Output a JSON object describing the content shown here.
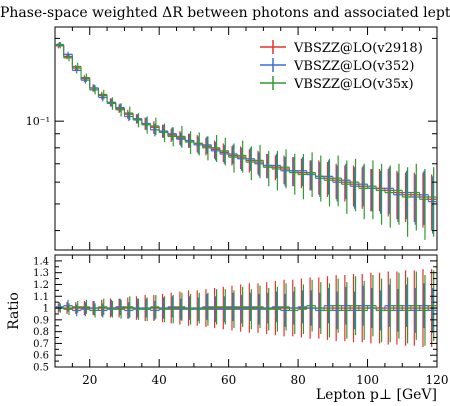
{
  "chart_data": [
    {
      "type": "line",
      "title": "Phase-space weighted ΔR between photons and associated leptons",
      "xlabel": "Lepton p⊥ [GeV]",
      "ylabel": "",
      "xlim": [
        10,
        120
      ],
      "ylim": [
        0.034,
        0.22
      ],
      "yscale": "log",
      "xticks": [
        "20",
        "40",
        "60",
        "80",
        "100",
        "120"
      ],
      "yticks": [
        {
          "value": 0.1,
          "label": "10⁻¹"
        }
      ],
      "legend_position": "top-right",
      "x": [
        10,
        12.5,
        15,
        17.5,
        20,
        22.5,
        25,
        27.5,
        30,
        32.5,
        35,
        37.5,
        40,
        42.5,
        45,
        47.5,
        50,
        52.5,
        55,
        57.5,
        60,
        62.5,
        65,
        67.5,
        70,
        72.5,
        75,
        77.5,
        80,
        82.5,
        85,
        87.5,
        90,
        92.5,
        95,
        97.5,
        100,
        102.5,
        105,
        107.5,
        110,
        112.5,
        115,
        117.5
      ],
      "series": [
        {
          "name": "VBSZZ@LO(v2918)",
          "color": "#e8312a",
          "values": [
            0.188,
            0.172,
            0.156,
            0.143,
            0.132,
            0.124,
            0.117,
            0.111,
            0.106,
            0.102,
            0.098,
            0.095,
            0.092,
            0.089,
            0.087,
            0.085,
            0.083,
            0.081,
            0.079,
            0.077,
            0.075,
            0.074,
            0.072,
            0.071,
            0.069,
            0.068,
            0.067,
            0.066,
            0.065,
            0.064,
            0.063,
            0.062,
            0.061,
            0.06,
            0.059,
            0.058,
            0.057,
            0.057,
            0.056,
            0.055,
            0.054,
            0.054,
            0.053,
            0.052
          ],
          "errors": [
            0.004,
            0.004,
            0.004,
            0.004,
            0.004,
            0.004,
            0.004,
            0.004,
            0.004,
            0.004,
            0.005,
            0.005,
            0.005,
            0.005,
            0.005,
            0.005,
            0.006,
            0.006,
            0.006,
            0.006,
            0.006,
            0.007,
            0.007,
            0.007,
            0.007,
            0.007,
            0.008,
            0.008,
            0.008,
            0.008,
            0.009,
            0.009,
            0.009,
            0.009,
            0.01,
            0.01,
            0.01,
            0.01,
            0.011,
            0.011,
            0.011,
            0.011,
            0.012,
            0.012
          ]
        },
        {
          "name": "VBSZZ@LO(v352)",
          "color": "#3a6fd8",
          "values": [
            0.19,
            0.175,
            0.153,
            0.141,
            0.132,
            0.122,
            0.117,
            0.112,
            0.104,
            0.102,
            0.098,
            0.093,
            0.092,
            0.09,
            0.086,
            0.085,
            0.082,
            0.082,
            0.078,
            0.076,
            0.076,
            0.073,
            0.073,
            0.07,
            0.069,
            0.069,
            0.066,
            0.066,
            0.066,
            0.064,
            0.062,
            0.063,
            0.06,
            0.061,
            0.058,
            0.059,
            0.057,
            0.056,
            0.057,
            0.054,
            0.055,
            0.053,
            0.054,
            0.051
          ],
          "errors": [
            0.004,
            0.004,
            0.004,
            0.004,
            0.004,
            0.004,
            0.004,
            0.004,
            0.004,
            0.004,
            0.005,
            0.005,
            0.005,
            0.005,
            0.005,
            0.005,
            0.006,
            0.006,
            0.006,
            0.006,
            0.006,
            0.007,
            0.007,
            0.007,
            0.007,
            0.007,
            0.008,
            0.008,
            0.008,
            0.008,
            0.009,
            0.009,
            0.009,
            0.009,
            0.01,
            0.01,
            0.01,
            0.01,
            0.011,
            0.011,
            0.011,
            0.011,
            0.012,
            0.012
          ]
        },
        {
          "name": "VBSZZ@LO(v35x)",
          "color": "#2f9a2f",
          "values": [
            0.189,
            0.17,
            0.158,
            0.144,
            0.13,
            0.125,
            0.116,
            0.11,
            0.107,
            0.101,
            0.097,
            0.096,
            0.091,
            0.088,
            0.088,
            0.084,
            0.083,
            0.08,
            0.08,
            0.078,
            0.074,
            0.075,
            0.071,
            0.072,
            0.068,
            0.067,
            0.068,
            0.065,
            0.064,
            0.065,
            0.063,
            0.061,
            0.062,
            0.059,
            0.06,
            0.057,
            0.058,
            0.056,
            0.055,
            0.056,
            0.053,
            0.055,
            0.052,
            0.053
          ],
          "errors": [
            0.005,
            0.005,
            0.005,
            0.005,
            0.005,
            0.005,
            0.006,
            0.006,
            0.006,
            0.006,
            0.007,
            0.007,
            0.007,
            0.007,
            0.008,
            0.008,
            0.008,
            0.008,
            0.009,
            0.009,
            0.009,
            0.01,
            0.01,
            0.01,
            0.01,
            0.011,
            0.011,
            0.011,
            0.012,
            0.012,
            0.012,
            0.012,
            0.013,
            0.013,
            0.013,
            0.013,
            0.014,
            0.014,
            0.014,
            0.014,
            0.015,
            0.015,
            0.015,
            0.015
          ]
        }
      ]
    },
    {
      "type": "line",
      "title": "",
      "xlabel": "Lepton p⊥ [GeV]",
      "ylabel": "Ratio",
      "xlim": [
        10,
        120
      ],
      "ylim": [
        0.5,
        1.45
      ],
      "yticks": [
        "0.5",
        "0.6",
        "0.7",
        "0.8",
        "0.9",
        "1",
        "1.1",
        "1.2",
        "1.3",
        "1.4"
      ],
      "x": [
        10,
        12.5,
        15,
        17.5,
        20,
        22.5,
        25,
        27.5,
        30,
        32.5,
        35,
        37.5,
        40,
        42.5,
        45,
        47.5,
        50,
        52.5,
        55,
        57.5,
        60,
        62.5,
        65,
        67.5,
        70,
        72.5,
        75,
        77.5,
        80,
        82.5,
        85,
        87.5,
        90,
        92.5,
        95,
        97.5,
        100,
        102.5,
        105,
        107.5,
        110,
        112.5,
        115,
        117.5
      ],
      "series": [
        {
          "name": "VBSZZ@LO(v2918)",
          "color": "#e8312a",
          "values": [
            1,
            1,
            1,
            1,
            1,
            1,
            1,
            1,
            1,
            1,
            1,
            1,
            1,
            1,
            1,
            1,
            1,
            1,
            1,
            1,
            1,
            1,
            1,
            1,
            1,
            1,
            1,
            1,
            1,
            1,
            1,
            1,
            1,
            1,
            1,
            1,
            1,
            1,
            1,
            1,
            1,
            1,
            1,
            1
          ],
          "errors": [
            0.04,
            0.05,
            0.05,
            0.06,
            0.06,
            0.07,
            0.08,
            0.08,
            0.09,
            0.1,
            0.11,
            0.11,
            0.12,
            0.13,
            0.14,
            0.15,
            0.15,
            0.16,
            0.17,
            0.18,
            0.19,
            0.2,
            0.21,
            0.21,
            0.22,
            0.23,
            0.24,
            0.24,
            0.25,
            0.26,
            0.26,
            0.27,
            0.28,
            0.28,
            0.29,
            0.29,
            0.3,
            0.3,
            0.31,
            0.31,
            0.32,
            0.32,
            0.33,
            0.33
          ]
        },
        {
          "name": "VBSZZ@LO(v352)",
          "color": "#3a6fd8",
          "values": [
            1.01,
            1.02,
            0.98,
            0.99,
            1.0,
            0.98,
            1.0,
            1.01,
            0.98,
            1.0,
            1.0,
            0.98,
            1.0,
            1.01,
            0.99,
            1.0,
            0.99,
            1.01,
            0.99,
            0.99,
            1.01,
            0.99,
            1.01,
            0.99,
            1.0,
            1.01,
            0.98,
            1.0,
            1.01,
            1.0,
            0.98,
            1.02,
            0.98,
            1.02,
            0.98,
            1.02,
            1.0,
            0.98,
            1.02,
            0.98,
            1.02,
            0.98,
            1.02,
            0.98
          ],
          "errors": [
            0.04,
            0.05,
            0.05,
            0.06,
            0.06,
            0.06,
            0.07,
            0.07,
            0.07,
            0.08,
            0.08,
            0.08,
            0.09,
            0.09,
            0.09,
            0.1,
            0.1,
            0.11,
            0.11,
            0.11,
            0.12,
            0.12,
            0.12,
            0.13,
            0.13,
            0.13,
            0.14,
            0.14,
            0.14,
            0.15,
            0.15,
            0.15,
            0.16,
            0.16,
            0.16,
            0.17,
            0.17,
            0.17,
            0.18,
            0.18,
            0.18,
            0.19,
            0.19,
            0.19
          ]
        },
        {
          "name": "VBSZZ@LO(v35x)",
          "color": "#2f9a2f",
          "values": [
            1.0,
            0.99,
            1.01,
            1.01,
            0.98,
            1.01,
            0.99,
            0.99,
            1.01,
            0.99,
            0.99,
            1.01,
            0.99,
            0.99,
            1.01,
            0.99,
            1.0,
            0.99,
            1.01,
            1.01,
            0.99,
            1.01,
            0.99,
            1.01,
            0.99,
            0.99,
            1.01,
            0.98,
            0.99,
            1.02,
            1.0,
            0.98,
            1.02,
            0.98,
            1.02,
            0.98,
            1.02,
            0.98,
            0.98,
            1.02,
            0.98,
            1.02,
            0.98,
            1.02
          ],
          "errors": [
            0.04,
            0.05,
            0.05,
            0.06,
            0.06,
            0.07,
            0.07,
            0.08,
            0.09,
            0.09,
            0.1,
            0.1,
            0.11,
            0.12,
            0.12,
            0.13,
            0.13,
            0.14,
            0.15,
            0.15,
            0.16,
            0.17,
            0.17,
            0.18,
            0.18,
            0.19,
            0.2,
            0.2,
            0.21,
            0.22,
            0.22,
            0.23,
            0.23,
            0.24,
            0.25,
            0.25,
            0.26,
            0.27,
            0.27,
            0.28,
            0.28,
            0.29,
            0.3,
            0.3
          ]
        }
      ]
    }
  ]
}
